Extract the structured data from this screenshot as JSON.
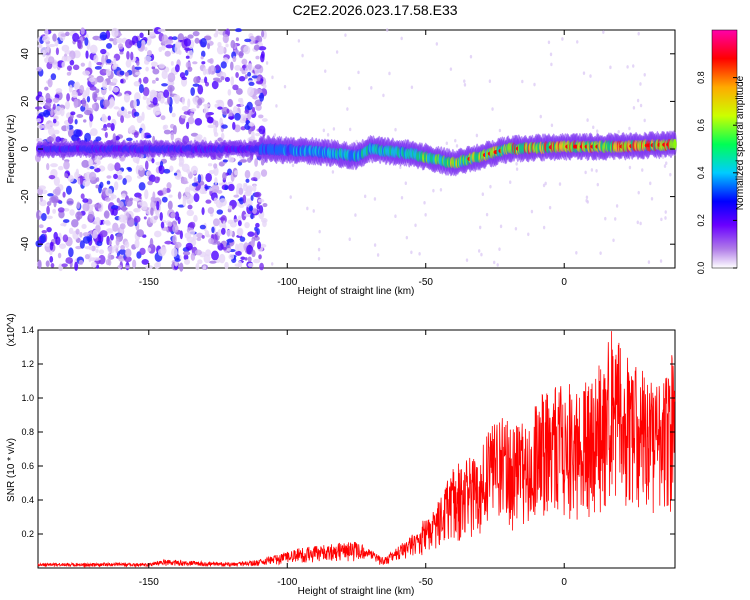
{
  "figure": {
    "title": "C2E2.2026.023.17.58.E33"
  },
  "chart_data": [
    {
      "type": "heatmap",
      "xlabel": "Height of straight line (km)",
      "ylabel": "Frequency (Hz)",
      "xlim": [
        -190,
        40
      ],
      "ylim": [
        -50,
        50
      ],
      "xticks": [
        -150,
        -100,
        -50,
        0
      ],
      "yticks": [
        -40,
        -20,
        0,
        20,
        40
      ],
      "colorbar": {
        "label": "Normalized spectral amplitude",
        "range": [
          0,
          1
        ],
        "ticks": [
          "0.0",
          "0.2",
          "0.4",
          "0.6",
          "0.8"
        ],
        "colormap": [
          "#ffffff",
          "#8a2be2",
          "#0000ff",
          "#00ffff",
          "#00ff00",
          "#ffff00",
          "#ff0000",
          "#ff00ff"
        ]
      },
      "ridge": {
        "description_points_x": [
          -150,
          -110,
          -90,
          -75,
          -70,
          -55,
          -40,
          -30,
          -20,
          0,
          20,
          40
        ],
        "description_points_y": [
          0,
          0,
          -1,
          -3,
          0,
          -2,
          -6,
          -3,
          0,
          1,
          1,
          2
        ]
      }
    },
    {
      "type": "line",
      "xlabel": "Height of straight line (km)",
      "ylabel": "SNR (10 * v/v)",
      "y_multiplier": "(x10^4)",
      "xlim": [
        -190,
        40
      ],
      "ylim": [
        0,
        1.4
      ],
      "xticks": [
        -150,
        -100,
        -50,
        0
      ],
      "yticks": [
        "0.2",
        "0.4",
        "0.6",
        "0.8",
        "1.0",
        "1.2",
        "1.4"
      ],
      "line_color": "#ff0000",
      "envelope_x": [
        -190,
        -150,
        -145,
        -120,
        -110,
        -95,
        -75,
        -65,
        -55,
        -45,
        -40,
        -30,
        -25,
        -15,
        -10,
        0,
        10,
        17,
        25,
        35,
        40
      ],
      "envelope_y": [
        0.03,
        0.03,
        0.05,
        0.03,
        0.05,
        0.12,
        0.16,
        0.06,
        0.2,
        0.4,
        0.6,
        0.7,
        0.9,
        0.85,
        1.0,
        1.1,
        1.1,
        1.4,
        1.2,
        1.1,
        1.3
      ]
    }
  ]
}
